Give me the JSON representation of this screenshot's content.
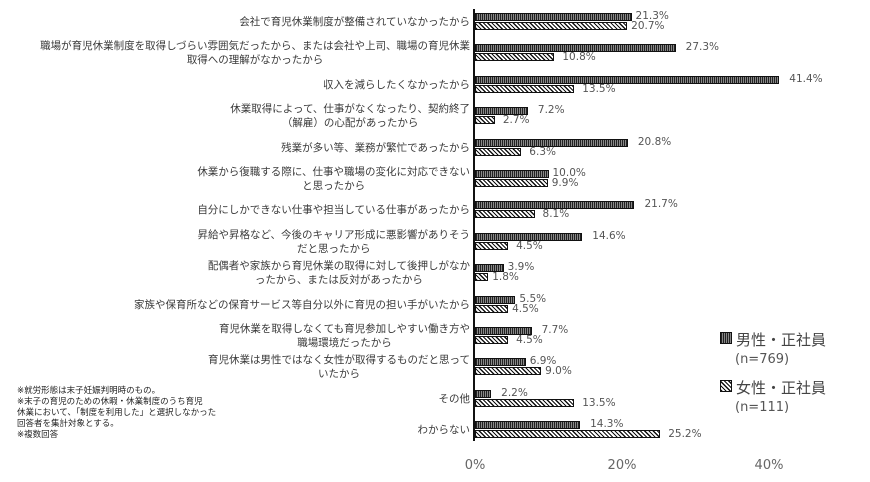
{
  "chart_data": {
    "type": "bar",
    "orientation": "horizontal",
    "title": "",
    "xlabel": "",
    "ylabel": "",
    "xlim": [
      0,
      42
    ],
    "x_ticks": [
      "0%",
      "20%",
      "40%"
    ],
    "grid": false,
    "legend_position": "right",
    "categories": [
      "会社で育児休業制度が整備されていなかったから",
      "職場が育児休業制度を取得しづらい雰囲気だったから、または会社や上司、職場の育児休業取得への理解がなかったから",
      "収入を減らしたくなかったから",
      "休業取得によって、仕事がなくなったり、契約終了（解雇）の心配があったから",
      "残業が多い等、業務が繁忙であったから",
      "休業から復職する際に、仕事や職場の変化に対応できないと思ったから",
      "自分にしかできない仕事や担当している仕事があったから",
      "昇給や昇格など、今後のキャリア形成に悪影響がありそうだと思ったから",
      "配偶者や家族から育児休業の取得に対して後押しがなかったから、または反対があったから",
      "家族や保育所などの保育サービス等自分以外に育児の担い手がいたから",
      "育児休業を取得しなくても育児参加しやすい働き方や職場環境だったから",
      "育児休業は男性ではなく女性が取得するものだと思っていたから",
      "その他",
      "わからない"
    ],
    "series": [
      {
        "name": "男性・正社員 (n=769)",
        "values": [
          21.3,
          27.3,
          41.4,
          7.2,
          20.8,
          10.0,
          21.7,
          14.6,
          3.9,
          5.5,
          7.7,
          6.9,
          2.2,
          14.3
        ]
      },
      {
        "name": "女性・正社員 (n=111)",
        "values": [
          20.7,
          10.8,
          13.5,
          2.7,
          6.3,
          9.9,
          8.1,
          4.5,
          1.8,
          4.5,
          4.5,
          9.0,
          13.5,
          25.2
        ]
      }
    ]
  },
  "labels": {
    "rows": [
      {
        "lines": [
          "会社で育児休業制度が整備されていなかったから"
        ],
        "male": "21.3%",
        "female": "20.7%"
      },
      {
        "lines": [
          "職場が育児休業制度を取得しづらい雰囲気だったから、または会社や上司、職場の育児休業",
          "取得への理解がなかったから"
        ],
        "male": "27.3%",
        "female": "10.8%"
      },
      {
        "lines": [
          "収入を減らしたくなかったから"
        ],
        "male": "41.4%",
        "female": "13.5%"
      },
      {
        "lines": [
          "休業取得によって、仕事がなくなったり、契約終了",
          "（解雇）の心配があったから"
        ],
        "male": "7.2%",
        "female": "2.7%"
      },
      {
        "lines": [
          "残業が多い等、業務が繁忙であったから"
        ],
        "male": "20.8%",
        "female": "6.3%"
      },
      {
        "lines": [
          "休業から復職する際に、仕事や職場の変化に対応できない",
          "と思ったから"
        ],
        "male": "10.0%",
        "female": "9.9%"
      },
      {
        "lines": [
          "自分にしかできない仕事や担当している仕事があったから"
        ],
        "male": "21.7%",
        "female": "8.1%"
      },
      {
        "lines": [
          "昇給や昇格など、今後のキャリア形成に悪影響がありそう",
          "だと思ったから"
        ],
        "male": "14.6%",
        "female": "4.5%"
      },
      {
        "lines": [
          "配偶者や家族から育児休業の取得に対して後押しがなか",
          "ったから、または反対があったから"
        ],
        "male": "3.9%",
        "female": "1.8%"
      },
      {
        "lines": [
          "家族や保育所などの保育サービス等自分以外に育児の担い手がいたから"
        ],
        "male": "5.5%",
        "female": "4.5%"
      },
      {
        "lines": [
          "育児休業を取得しなくても育児参加しやすい働き方や",
          "職場環境だったから"
        ],
        "male": "7.7%",
        "female": "4.5%"
      },
      {
        "lines": [
          "育児休業は男性ではなく女性が取得するものだと思って",
          "いたから"
        ],
        "male": "6.9%",
        "female": "9.0%"
      },
      {
        "lines": [
          "その他"
        ],
        "male": "2.2%",
        "female": "13.5%"
      },
      {
        "lines": [
          "わからない"
        ],
        "male": "14.3%",
        "female": "25.2%"
      }
    ],
    "ticks": [
      "0%",
      "20%",
      "40%"
    ]
  },
  "legend": {
    "male": {
      "label": "男性・正社員",
      "n": "(n=769)"
    },
    "female": {
      "label": "女性・正社員",
      "n": "(n=111)"
    }
  },
  "notes": [
    "※就労形態は末子妊娠判明時のもの。",
    "※末子の育児のための休暇・休業制度のうち育児",
    "休業において、「制度を利用した」と選択しなかった",
    "回答者を集計対象とする。",
    "※複数回答"
  ]
}
